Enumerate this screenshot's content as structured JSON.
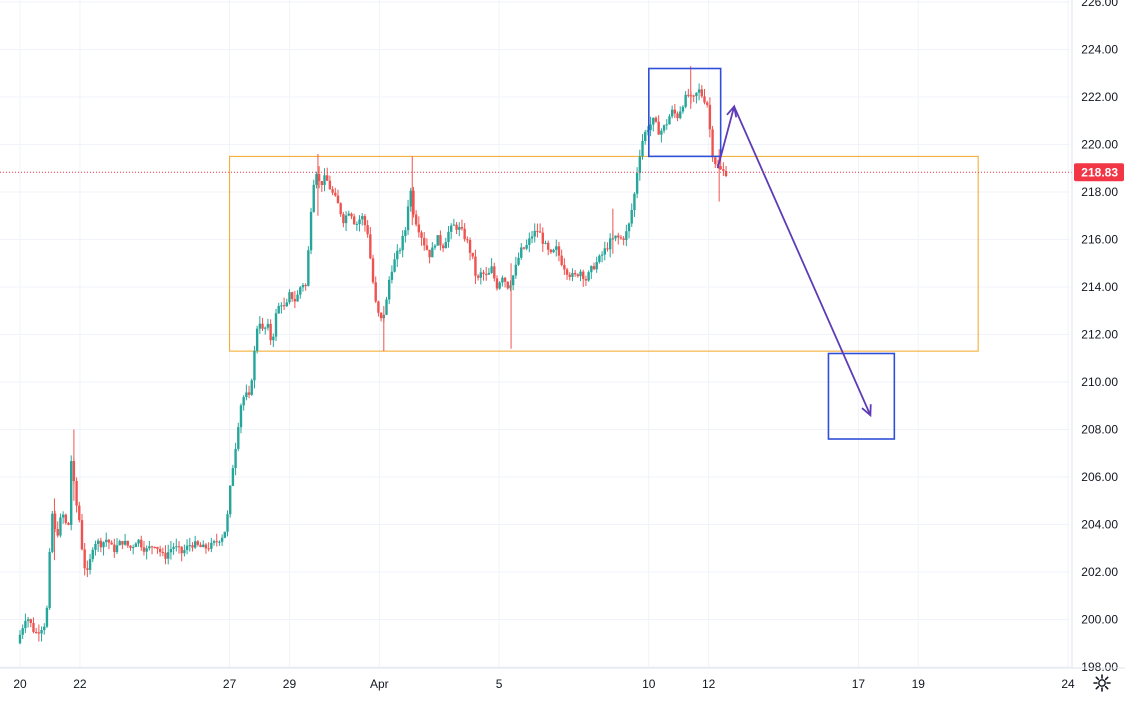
{
  "chart_data": {
    "type": "candlestick",
    "title": "",
    "xlabel": "",
    "ylabel": "",
    "ylim": [
      198,
      226
    ],
    "xlim": [
      20,
      24
    ],
    "grid": true,
    "y_ticks": [
      "198.00",
      "200.00",
      "202.00",
      "204.00",
      "206.00",
      "208.00",
      "210.00",
      "212.00",
      "214.00",
      "216.00",
      "218.00",
      "220.00",
      "222.00",
      "224.00",
      "226.00"
    ],
    "x_ticks": [
      {
        "label": "20",
        "day": 20
      },
      {
        "label": "22",
        "day": 22
      },
      {
        "label": "27",
        "day": 27
      },
      {
        "label": "29",
        "day": 29
      },
      {
        "label": "Apr",
        "day": 32
      },
      {
        "label": "5",
        "day": 36
      },
      {
        "label": "10",
        "day": 41
      },
      {
        "label": "12",
        "day": 43
      },
      {
        "label": "17",
        "day": 48
      },
      {
        "label": "19",
        "day": 50
      },
      {
        "label": "24",
        "day": 55
      }
    ],
    "last_price": {
      "value": 218.83,
      "label": "218.83",
      "color": "#f23645"
    },
    "path": [
      [
        20.0,
        199.0
      ],
      [
        20.3,
        200.2
      ],
      [
        20.6,
        199.4
      ],
      [
        20.9,
        199.8
      ],
      [
        21.0,
        200.5
      ],
      [
        21.15,
        204.6
      ],
      [
        21.3,
        203.4
      ],
      [
        21.5,
        204.5
      ],
      [
        21.7,
        203.7
      ],
      [
        21.8,
        206.7
      ],
      [
        21.95,
        205.0
      ],
      [
        22.1,
        204.0
      ],
      [
        22.2,
        202.4
      ],
      [
        22.35,
        201.9
      ],
      [
        22.55,
        203.3
      ],
      [
        22.8,
        203.2
      ],
      [
        23.0,
        203.4
      ],
      [
        23.2,
        202.9
      ],
      [
        23.5,
        203.3
      ],
      [
        23.8,
        203.0
      ],
      [
        24.0,
        203.4
      ],
      [
        24.3,
        202.9
      ],
      [
        24.6,
        203.2
      ],
      [
        24.9,
        202.6
      ],
      [
        25.2,
        203.1
      ],
      [
        25.5,
        202.8
      ],
      [
        25.8,
        203.2
      ],
      [
        26.2,
        203.0
      ],
      [
        26.5,
        203.1
      ],
      [
        26.9,
        203.6
      ],
      [
        27.0,
        204.1
      ],
      [
        27.15,
        206.0
      ],
      [
        27.3,
        207.4
      ],
      [
        27.45,
        209.0
      ],
      [
        27.6,
        209.5
      ],
      [
        27.75,
        209.3
      ],
      [
        27.9,
        211.0
      ],
      [
        28.05,
        212.8
      ],
      [
        28.2,
        212.1
      ],
      [
        28.35,
        212.4
      ],
      [
        28.5,
        211.6
      ],
      [
        28.65,
        212.9
      ],
      [
        28.8,
        213.4
      ],
      [
        28.95,
        213.0
      ],
      [
        29.1,
        213.7
      ],
      [
        29.3,
        213.4
      ],
      [
        29.5,
        214.2
      ],
      [
        29.65,
        214.0
      ],
      [
        29.8,
        217.2
      ],
      [
        29.95,
        219.1
      ],
      [
        30.1,
        218.3
      ],
      [
        30.3,
        218.6
      ],
      [
        30.5,
        218.0
      ],
      [
        30.7,
        217.5
      ],
      [
        30.9,
        216.8
      ],
      [
        31.1,
        217.3
      ],
      [
        31.3,
        216.6
      ],
      [
        31.5,
        217.0
      ],
      [
        31.7,
        216.3
      ],
      [
        31.85,
        214.5
      ],
      [
        32.0,
        213.0
      ],
      [
        32.15,
        212.6
      ],
      [
        32.3,
        213.1
      ],
      [
        32.45,
        214.6
      ],
      [
        32.6,
        215.1
      ],
      [
        32.8,
        215.7
      ],
      [
        33.0,
        216.6
      ],
      [
        33.1,
        218.4
      ],
      [
        33.25,
        217.0
      ],
      [
        33.4,
        216.5
      ],
      [
        33.6,
        215.8
      ],
      [
        33.8,
        215.3
      ],
      [
        34.0,
        216.1
      ],
      [
        34.2,
        215.7
      ],
      [
        34.4,
        216.3
      ],
      [
        34.6,
        216.6
      ],
      [
        34.8,
        216.4
      ],
      [
        35.0,
        216.0
      ],
      [
        35.2,
        215.2
      ],
      [
        35.35,
        214.2
      ],
      [
        35.5,
        214.6
      ],
      [
        35.7,
        214.4
      ],
      [
        35.85,
        214.8
      ],
      [
        36.0,
        214.0
      ],
      [
        36.2,
        214.5
      ],
      [
        36.4,
        214.0
      ],
      [
        36.6,
        214.6
      ],
      [
        36.8,
        215.5
      ],
      [
        37.0,
        215.7
      ],
      [
        37.2,
        216.2
      ],
      [
        37.4,
        216.4
      ],
      [
        37.6,
        215.8
      ],
      [
        37.8,
        215.3
      ],
      [
        38.0,
        215.6
      ],
      [
        38.2,
        215.0
      ],
      [
        38.4,
        214.6
      ],
      [
        38.6,
        214.4
      ],
      [
        38.8,
        214.7
      ],
      [
        39.0,
        214.3
      ],
      [
        39.2,
        214.8
      ],
      [
        39.4,
        215.1
      ],
      [
        39.6,
        215.5
      ],
      [
        39.8,
        215.9
      ],
      [
        40.0,
        216.1
      ],
      [
        40.2,
        216.0
      ],
      [
        40.4,
        216.4
      ],
      [
        40.6,
        217.8
      ],
      [
        40.75,
        219.4
      ],
      [
        40.9,
        220.3
      ],
      [
        41.05,
        220.7
      ],
      [
        41.25,
        221.0
      ],
      [
        41.45,
        220.5
      ],
      [
        41.65,
        220.8
      ],
      [
        41.85,
        221.4
      ],
      [
        42.05,
        221.2
      ],
      [
        42.25,
        221.8
      ],
      [
        42.4,
        222.1
      ],
      [
        42.55,
        221.8
      ],
      [
        42.75,
        222.3
      ],
      [
        42.9,
        222.0
      ],
      [
        43.05,
        221.7
      ],
      [
        43.2,
        219.7
      ],
      [
        43.35,
        219.1
      ],
      [
        43.5,
        218.9
      ],
      [
        43.6,
        218.83
      ]
    ],
    "spikes": [
      {
        "day": 21.15,
        "high": 205.1,
        "low": 202.5
      },
      {
        "day": 21.8,
        "high": 208.0,
        "low": 205.0
      },
      {
        "day": 29.95,
        "high": 219.6,
        "low": 217.0
      },
      {
        "day": 32.15,
        "high": 213.2,
        "low": 211.3
      },
      {
        "day": 33.1,
        "high": 219.5,
        "low": 216.6
      },
      {
        "day": 36.4,
        "high": 215.0,
        "low": 211.4
      },
      {
        "day": 39.8,
        "high": 217.3,
        "low": 215.4
      },
      {
        "day": 42.4,
        "high": 223.3,
        "low": 221.5
      },
      {
        "day": 43.35,
        "high": 219.8,
        "low": 217.6
      }
    ],
    "annotations": {
      "range_box": {
        "day_start": 27.0,
        "day_end": 52.0,
        "price_top": 219.5,
        "price_bottom": 211.3,
        "color": "#f5a623"
      },
      "top_box": {
        "day_start": 41.0,
        "day_end": 43.4,
        "price_top": 223.2,
        "price_bottom": 219.5,
        "color": "#2f4fd9"
      },
      "target_box": {
        "day_start": 47.0,
        "day_end": 49.2,
        "price_top": 211.2,
        "price_bottom": 207.6,
        "color": "#2f4fd9"
      },
      "projection": {
        "color": "#5e3cb8",
        "points": [
          [
            43.3,
            219.0
          ],
          [
            43.85,
            221.6
          ],
          [
            48.4,
            208.6
          ]
        ]
      }
    },
    "colors": {
      "up": "#26a69a",
      "down": "#ef5350",
      "grid": "#f0f3fa",
      "text": "#131722"
    }
  },
  "toolbar": {
    "settings_icon": "settings-gear-icon"
  }
}
